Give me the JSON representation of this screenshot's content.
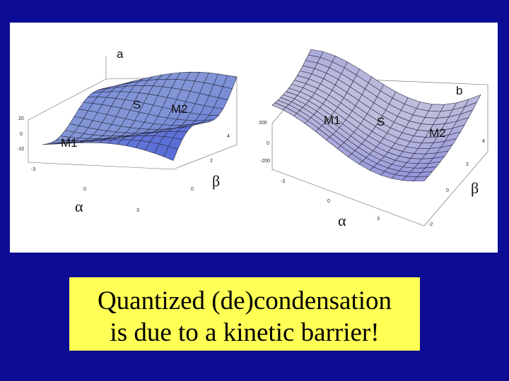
{
  "panel_a": {
    "label": "a",
    "points": [
      "S",
      "M2",
      "M1"
    ],
    "x_axis": "α",
    "y_axis": "β",
    "z_ticks": [
      "20",
      "0",
      "-10"
    ],
    "x_ticks": [
      "-3",
      "0",
      "3"
    ],
    "y_ticks": [
      "0",
      "2",
      "4"
    ]
  },
  "panel_b": {
    "label": "b",
    "points": [
      "M1",
      "S",
      "M2"
    ],
    "x_axis": "α",
    "y_axis": "β",
    "z_ticks": [
      "200",
      "0",
      "-200"
    ],
    "x_ticks": [
      "-3",
      "0",
      "3"
    ],
    "y_ticks": [
      "-2",
      "0",
      "2",
      "4"
    ]
  },
  "caption": [
    "Quantized   (de)condensation",
    "is due to a kinetic barrier!"
  ]
}
